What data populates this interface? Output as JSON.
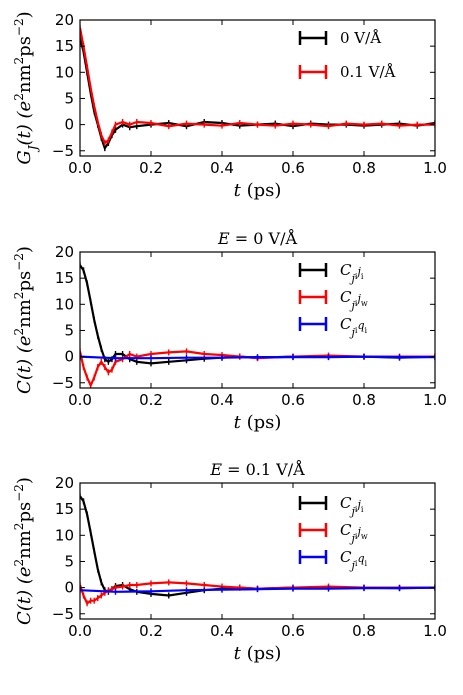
{
  "colors": {
    "black": "#000000",
    "red": "#ff0000",
    "blue": "#0000ff"
  },
  "chart_data": [
    {
      "type": "line",
      "title": "",
      "xlabel": "t (ps)",
      "ylabel": "G_J(t) (e²nm²ps⁻²)",
      "xlim": [
        0,
        1
      ],
      "ylim": [
        -6,
        20
      ],
      "xticks": [
        "0.0",
        "0.2",
        "0.4",
        "0.6",
        "0.8",
        "1.0"
      ],
      "yticks": [
        "−5",
        "0",
        "5",
        "10",
        "15",
        "20"
      ],
      "legend_position": "top-right",
      "series": [
        {
          "name": "0 V/Å",
          "color": "#000000",
          "x": [
            0,
            0.01,
            0.02,
            0.03,
            0.04,
            0.05,
            0.06,
            0.07,
            0.08,
            0.09,
            0.1,
            0.12,
            0.14,
            0.16,
            0.2,
            0.25,
            0.3,
            0.35,
            0.4,
            0.45,
            0.5,
            0.55,
            0.6,
            0.65,
            0.7,
            0.75,
            0.8,
            0.85,
            0.9,
            0.95,
            1.0
          ],
          "y": [
            16.5,
            14,
            10,
            6,
            2.5,
            0,
            -2.5,
            -4.5,
            -3.5,
            -2,
            -1,
            0,
            -0.5,
            -0.3,
            0,
            0.3,
            -0.3,
            0.5,
            0.3,
            -0.2,
            0,
            0.2,
            -0.3,
            0.2,
            0,
            0,
            -0.2,
            0,
            0.2,
            -0.2,
            0.3
          ]
        },
        {
          "name": "0.1 V/Å",
          "color": "#ff0000",
          "x": [
            0,
            0.01,
            0.02,
            0.03,
            0.04,
            0.05,
            0.06,
            0.07,
            0.08,
            0.09,
            0.1,
            0.12,
            0.14,
            0.16,
            0.2,
            0.25,
            0.3,
            0.35,
            0.4,
            0.45,
            0.5,
            0.55,
            0.6,
            0.65,
            0.7,
            0.75,
            0.8,
            0.85,
            0.9,
            0.95,
            1.0
          ],
          "y": [
            18.5,
            15,
            11,
            7,
            3.5,
            0.5,
            -2,
            -3.5,
            -3,
            -1.5,
            0,
            0.5,
            0,
            0.5,
            0.3,
            -0.3,
            0.2,
            0,
            -0.2,
            0.3,
            0,
            -0.2,
            0.2,
            0,
            -0.3,
            0.2,
            0,
            0.2,
            -0.2,
            0,
            0
          ]
        }
      ]
    },
    {
      "type": "line",
      "title": "E = 0 V/Å",
      "xlabel": "t (ps)",
      "ylabel": "C(t) (e²nm²ps⁻²)",
      "xlim": [
        0,
        1
      ],
      "ylim": [
        -6,
        20
      ],
      "xticks": [
        "0.0",
        "0.2",
        "0.4",
        "0.6",
        "0.8",
        "1.0"
      ],
      "yticks": [
        "−5",
        "0",
        "5",
        "10",
        "15",
        "20"
      ],
      "legend_position": "top-right",
      "series": [
        {
          "name": "C_jiji",
          "color": "#000000",
          "x": [
            0,
            0.01,
            0.02,
            0.03,
            0.04,
            0.05,
            0.06,
            0.07,
            0.08,
            0.09,
            0.1,
            0.12,
            0.14,
            0.16,
            0.2,
            0.25,
            0.3,
            0.35,
            0.4,
            0.45,
            0.5,
            0.6,
            0.7,
            0.8,
            0.9,
            1.0
          ],
          "y": [
            17.5,
            16.5,
            14,
            10.5,
            7,
            4,
            1.5,
            -0.5,
            -1,
            -0.5,
            0.5,
            0.5,
            -0.5,
            -1,
            -1.3,
            -1,
            -0.7,
            -0.4,
            -0.2,
            0,
            -0.2,
            0,
            0,
            0,
            -0.2,
            0
          ]
        },
        {
          "name": "C_jijw",
          "color": "#ff0000",
          "x": [
            0,
            0.01,
            0.02,
            0.03,
            0.04,
            0.05,
            0.06,
            0.07,
            0.08,
            0.09,
            0.1,
            0.12,
            0.14,
            0.16,
            0.2,
            0.25,
            0.3,
            0.35,
            0.4,
            0.45,
            0.5,
            0.6,
            0.7,
            0.8,
            0.9,
            1.0
          ],
          "y": [
            1,
            -2,
            -4,
            -5.5,
            -4,
            -2,
            -1,
            -2,
            -3,
            -2.5,
            -1,
            -0.5,
            0.5,
            0,
            0.5,
            0.8,
            1,
            0.5,
            0.3,
            0,
            -0.3,
            0,
            0.2,
            0,
            0,
            0
          ]
        },
        {
          "name": "C_jiqi",
          "color": "#0000ff",
          "x": [
            0,
            0.1,
            0.2,
            0.3,
            0.4,
            0.5,
            0.6,
            0.7,
            0.8,
            0.9,
            1.0
          ],
          "y": [
            0,
            -0.3,
            -0.3,
            -0.2,
            -0.2,
            -0.1,
            -0.1,
            -0.1,
            0,
            -0.1,
            -0.1
          ]
        }
      ]
    },
    {
      "type": "line",
      "title": "E = 0.1 V/Å",
      "xlabel": "t (ps)",
      "ylabel": "C(t) (e²nm²ps⁻²)",
      "xlim": [
        0,
        1
      ],
      "ylim": [
        -6,
        20
      ],
      "xticks": [
        "0.0",
        "0.2",
        "0.4",
        "0.6",
        "0.8",
        "1.0"
      ],
      "yticks": [
        "−5",
        "0",
        "5",
        "10",
        "15",
        "20"
      ],
      "legend_position": "top-right",
      "series": [
        {
          "name": "C_jiji",
          "color": "#000000",
          "x": [
            0,
            0.01,
            0.02,
            0.03,
            0.04,
            0.05,
            0.06,
            0.07,
            0.08,
            0.09,
            0.1,
            0.12,
            0.14,
            0.16,
            0.2,
            0.25,
            0.3,
            0.35,
            0.4,
            0.45,
            0.5,
            0.6,
            0.7,
            0.8,
            0.9,
            1.0
          ],
          "y": [
            17.5,
            16.5,
            14,
            10.5,
            7,
            3.5,
            1,
            -0.5,
            -0.8,
            -0.3,
            0.3,
            0.5,
            -0.3,
            -0.8,
            -1.2,
            -1.5,
            -1,
            -0.5,
            -0.2,
            0,
            -0.2,
            0,
            0,
            0,
            -0.1,
            0
          ]
        },
        {
          "name": "C_jijw",
          "color": "#ff0000",
          "x": [
            0,
            0.01,
            0.02,
            0.03,
            0.04,
            0.05,
            0.06,
            0.07,
            0.08,
            0.09,
            0.1,
            0.12,
            0.14,
            0.16,
            0.2,
            0.25,
            0.3,
            0.35,
            0.4,
            0.45,
            0.5,
            0.6,
            0.7,
            0.8,
            0.9,
            1.0
          ],
          "y": [
            0.5,
            -1.5,
            -3,
            -2.5,
            -2.5,
            -2,
            -1.5,
            -1,
            -0.5,
            -0.3,
            0,
            0.2,
            0.5,
            0.5,
            0.8,
            1,
            0.8,
            0.5,
            0.2,
            0,
            -0.2,
            0,
            0.2,
            0,
            0,
            0
          ]
        },
        {
          "name": "C_jiqi",
          "color": "#0000ff",
          "x": [
            0,
            0.1,
            0.2,
            0.3,
            0.4,
            0.5,
            0.6,
            0.7,
            0.8,
            0.9,
            1.0
          ],
          "y": [
            -0.5,
            -0.8,
            -0.7,
            -0.5,
            -0.4,
            -0.3,
            -0.2,
            -0.2,
            -0.1,
            -0.1,
            0
          ]
        }
      ]
    }
  ]
}
